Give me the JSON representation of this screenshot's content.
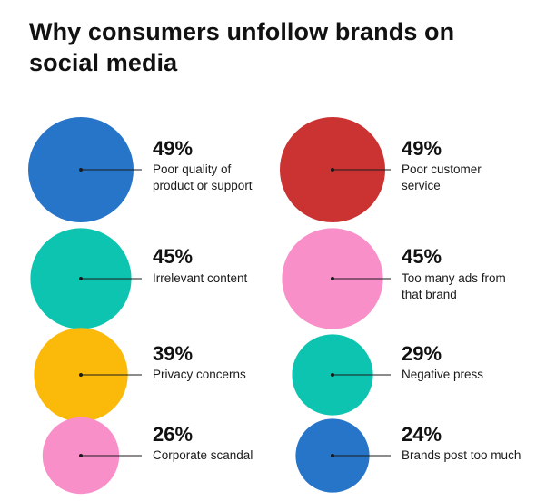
{
  "title": "Why consumers unfollow brands on social media",
  "colors": {
    "blue": "#2775c9",
    "red": "#cb3333",
    "teal": "#0dc4b0",
    "pink": "#f98fc9",
    "yellow": "#fbb90a"
  },
  "chart_data": {
    "type": "bubble",
    "title": "Why consumers unfollow brands on social media",
    "unit": "%",
    "items": [
      {
        "pct": "49%",
        "value": 49,
        "label_lines": [
          "Poor quality of",
          "product or support"
        ],
        "color": "#2775c9"
      },
      {
        "pct": "49%",
        "value": 49,
        "label_lines": [
          "Poor customer",
          "service"
        ],
        "color": "#cb3333"
      },
      {
        "pct": "45%",
        "value": 45,
        "label_lines": [
          "Irrelevant content"
        ],
        "color": "#0dc4b0"
      },
      {
        "pct": "45%",
        "value": 45,
        "label_lines": [
          "Too many ads from",
          "that brand"
        ],
        "color": "#f98fc9"
      },
      {
        "pct": "39%",
        "value": 39,
        "label_lines": [
          "Privacy concerns"
        ],
        "color": "#fbb90a"
      },
      {
        "pct": "29%",
        "value": 29,
        "label_lines": [
          "Negative press"
        ],
        "color": "#0dc4b0"
      },
      {
        "pct": "26%",
        "value": 26,
        "label_lines": [
          "Corporate scandal"
        ],
        "color": "#f98fc9"
      },
      {
        "pct": "24%",
        "value": 24,
        "label_lines": [
          "Brands post too much"
        ],
        "color": "#2775c9"
      }
    ]
  }
}
